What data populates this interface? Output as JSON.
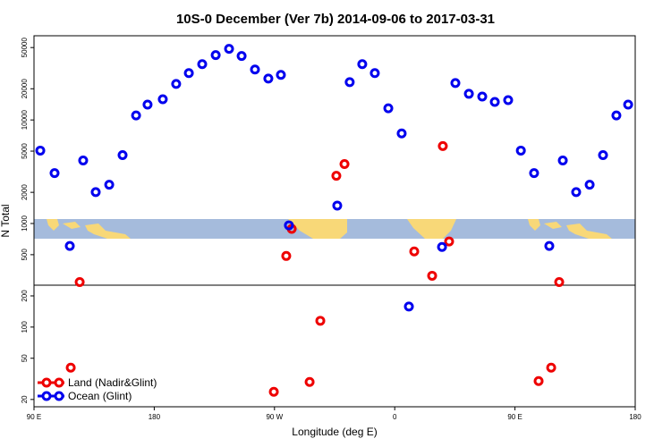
{
  "chart_data": {
    "type": "scatter",
    "title": "10S-0 December (Ver 7b)   2014-09-06 to 2017-03-31",
    "x_label": "Longitude (deg E)",
    "y_label": "N Total",
    "log_y": true,
    "legend": "bottom-left",
    "xlim": [
      90,
      540
    ],
    "ylim": [
      17,
      65000
    ],
    "xticks": [
      {
        "value": 90,
        "label": "90 E"
      },
      180,
      {
        "value": 270,
        "label": "90 W"
      },
      {
        "value": 360,
        "label": "0"
      },
      {
        "value": 450,
        "label": "90 E"
      },
      {
        "value": 540,
        "label": "180"
      }
    ],
    "yticks": [
      20,
      50,
      100,
      200,
      500,
      1000,
      2000,
      5000,
      10000,
      20000,
      50000
    ],
    "series": [
      {
        "name": "Land (Nadir&Glint)",
        "color": "#ee0000",
        "x": [
          124.2,
          117.5,
          269.5,
          278.8,
          282.9,
          296.3,
          304.3,
          316.3,
          322.4,
          374.6,
          388.0,
          396.0,
          400.7,
          467.7,
          477.1,
          483.1
        ],
        "values": [
          272,
          40.6,
          23.7,
          486,
          887,
          29.5,
          115,
          2890,
          3750,
          537,
          313,
          5600,
          670,
          30.1,
          40.6,
          272
        ]
      },
      {
        "name": "Ocean (Glint)",
        "color": "#0000ee",
        "x": [
          94.7,
          105.4,
          116.8,
          126.8,
          136.2,
          146.3,
          156.3,
          166.4,
          175.0,
          186.4,
          196.4,
          205.9,
          215.9,
          226.0,
          236.0,
          245.4,
          255.4,
          265.4,
          274.8,
          280.8,
          317.0,
          326.3,
          335.7,
          345.1,
          355.2,
          365.2,
          370.6,
          395.4,
          405.4,
          415.5,
          425.5,
          434.9,
          444.9,
          454.4,
          464.3,
          475.7,
          485.8,
          495.8,
          505.9,
          515.9,
          525.9,
          534.7
        ],
        "values": [
          5060,
          3070,
          607,
          4060,
          2010,
          2370,
          4580,
          11050,
          14060,
          15850,
          22280,
          28320,
          34600,
          42270,
          48640,
          41430,
          30690,
          25100,
          27220,
          960,
          1490,
          23200,
          34600,
          28320,
          12970,
          7410,
          158,
          594,
          22730,
          17880,
          16830,
          14930,
          15530,
          5060,
          3070,
          607,
          4060,
          2010,
          2370,
          4580,
          11050,
          14060
        ]
      }
    ]
  }
}
